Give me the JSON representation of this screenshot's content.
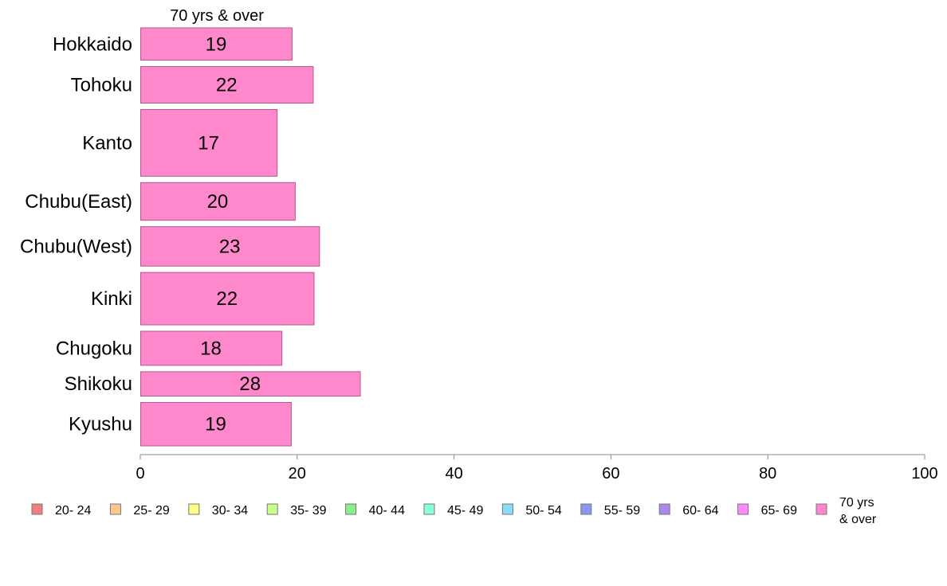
{
  "chart_data": {
    "type": "bar",
    "orientation": "horizontal",
    "series_label": "70 yrs & over",
    "categories": [
      "Hokkaido",
      "Tohoku",
      "Kanto",
      "Chubu(East)",
      "Chubu(West)",
      "Kinki",
      "Chugoku",
      "Shikoku",
      "Kyushu"
    ],
    "values": [
      19,
      22,
      17,
      20,
      23,
      22,
      18,
      28,
      19
    ],
    "plotted_values": [
      19.3,
      22.0,
      17.4,
      19.7,
      22.8,
      22.1,
      18.0,
      28.0,
      19.2
    ],
    "row_weights": [
      0.9,
      1.02,
      1.86,
      1.05,
      1.1,
      1.46,
      0.95,
      0.68,
      1.21
    ],
    "xlim": [
      0,
      100
    ],
    "xticks": [
      "0",
      "20",
      "40",
      "60",
      "80",
      "100"
    ],
    "xtick_values": [
      0,
      20,
      40,
      60,
      80,
      100
    ],
    "bar_color": "#ff88cc",
    "bar_stroke": "#b05a8c",
    "grid": false,
    "legend_position": "bottom",
    "legend": [
      {
        "label": "20- 24",
        "color": "#f08080"
      },
      {
        "label": "25- 29",
        "color": "#ffc888"
      },
      {
        "label": "30- 34",
        "color": "#ffff88"
      },
      {
        "label": "35- 39",
        "color": "#c8ff88"
      },
      {
        "label": "40- 44",
        "color": "#88f088"
      },
      {
        "label": "45- 49",
        "color": "#88ffdd"
      },
      {
        "label": "50- 54",
        "color": "#88ddff"
      },
      {
        "label": "55- 59",
        "color": "#8899ee"
      },
      {
        "label": "60- 64",
        "color": "#aa88ee"
      },
      {
        "label": "65- 69",
        "color": "#ff88ff"
      },
      {
        "label": "70 yrs & over",
        "label_lines": [
          "70 yrs",
          "& over"
        ],
        "color": "#ff88cc"
      }
    ]
  }
}
